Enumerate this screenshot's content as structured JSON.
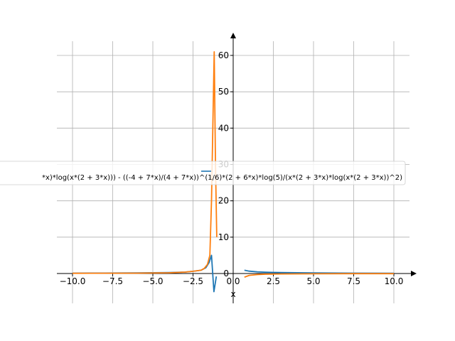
{
  "chart_data": {
    "type": "line",
    "xlabel": "x",
    "ylabel": "",
    "xlim": [
      -10,
      10
    ],
    "ylim": [
      -8,
      65
    ],
    "grid": true,
    "legend_placement": "center",
    "x_ticks": [
      -10.0,
      -7.5,
      -5.0,
      -2.5,
      0.0,
      2.5,
      5.0,
      7.5,
      10.0
    ],
    "x_tick_labels": [
      "−10.0",
      "−7.5",
      "−5.0",
      "−2.5",
      "0.0",
      "2.5",
      "5.0",
      "7.5",
      "10.0"
    ],
    "y_ticks": [
      0,
      10,
      20,
      30,
      40,
      50,
      60
    ],
    "y_tick_labels": [
      "0",
      "10",
      "20",
      "30",
      "40",
      "50",
      "60"
    ],
    "legend_label": "*x)*log(x*(2 + 3*x))) - ((-4 + 7*x)/(4 + 7*x))^(1/6)*(2 + 6*x)*log(5)/(x*(2 + 3*x)*log(x*(2 + 3*x))^2)",
    "series": [
      {
        "color": "#1f77b4",
        "segments": [
          [
            [
              -10,
              0.1
            ],
            [
              -8,
              0.12
            ],
            [
              -6,
              0.15
            ],
            [
              -4,
              0.25
            ],
            [
              -3,
              0.4
            ],
            [
              -2.5,
              0.6
            ],
            [
              -2,
              0.9
            ],
            [
              -1.7,
              1.6
            ],
            [
              -1.5,
              3.0
            ],
            [
              -1.35,
              5.0
            ],
            [
              -1.2,
              -5.0
            ],
            [
              -1.05,
              -0.8
            ]
          ],
          [
            [
              0.7,
              0.9
            ],
            [
              1,
              0.65
            ],
            [
              1.5,
              0.45
            ],
            [
              2,
              0.35
            ],
            [
              3,
              0.25
            ],
            [
              5,
              0.15
            ],
            [
              7.5,
              0.1
            ],
            [
              10,
              0.06
            ]
          ]
        ]
      },
      {
        "color": "#ff7f0e",
        "segments": [
          [
            [
              -10,
              0.05
            ],
            [
              -6,
              0.1
            ],
            [
              -4,
              0.2
            ],
            [
              -3,
              0.4
            ],
            [
              -2.5,
              0.6
            ],
            [
              -2,
              0.9
            ],
            [
              -1.8,
              1.4
            ],
            [
              -1.6,
              2.5
            ],
            [
              -1.45,
              5.0
            ],
            [
              -1.35,
              20.0
            ],
            [
              -1.25,
              45.0
            ],
            [
              -1.18,
              61.0
            ],
            [
              -1.1,
              30.0
            ],
            [
              -1.02,
              10.0
            ]
          ],
          [
            [
              0.7,
              -1.0
            ],
            [
              1,
              -0.5
            ],
            [
              1.5,
              -0.3
            ],
            [
              2,
              -0.2
            ],
            [
              3,
              -0.12
            ],
            [
              5,
              -0.07
            ],
            [
              7.5,
              -0.04
            ],
            [
              10,
              -0.03
            ]
          ]
        ]
      }
    ]
  }
}
